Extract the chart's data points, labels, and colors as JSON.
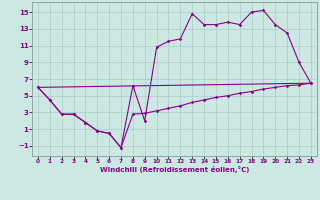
{
  "xlabel": "Windchill (Refroidissement éolien,°C)",
  "bg_color": "#cce8e2",
  "line_color": "#880088",
  "grid_color": "#aacccc",
  "xlim_min": -0.5,
  "xlim_max": 23.5,
  "ylim_min": -2.2,
  "ylim_max": 16.2,
  "xticks": [
    0,
    1,
    2,
    3,
    4,
    5,
    6,
    7,
    8,
    9,
    10,
    11,
    12,
    13,
    14,
    15,
    16,
    17,
    18,
    19,
    20,
    21,
    22,
    23
  ],
  "yticks": [
    -1,
    1,
    3,
    5,
    7,
    9,
    11,
    13,
    15
  ],
  "line1_x": [
    0,
    1,
    2,
    3,
    4,
    5,
    6,
    7,
    8,
    9,
    10,
    11,
    12,
    13,
    14,
    15,
    16,
    17,
    18,
    19,
    20,
    21,
    22,
    23
  ],
  "line1_y": [
    6.0,
    4.5,
    2.8,
    2.8,
    1.8,
    0.8,
    0.5,
    -1.2,
    6.2,
    2.0,
    10.8,
    11.5,
    11.8,
    14.8,
    13.5,
    13.5,
    13.8,
    13.5,
    15.0,
    15.2,
    13.5,
    12.5,
    9.0,
    6.5
  ],
  "line2_x": [
    0,
    1,
    2,
    3,
    4,
    5,
    6,
    7,
    8,
    9,
    10,
    11,
    12,
    13,
    14,
    15,
    16,
    17,
    18,
    19,
    20,
    21,
    22,
    23
  ],
  "line2_y": [
    6.0,
    4.5,
    2.8,
    2.8,
    1.8,
    0.8,
    0.5,
    -1.2,
    2.8,
    2.9,
    3.2,
    3.5,
    3.8,
    4.2,
    4.5,
    4.8,
    5.0,
    5.3,
    5.5,
    5.8,
    6.0,
    6.2,
    6.3,
    6.5
  ],
  "line3_x": [
    0,
    23
  ],
  "line3_y": [
    6.0,
    6.5
  ],
  "xlabel_fontsize": 5.0,
  "tick_fontsize_x": 4.2,
  "tick_fontsize_y": 5.0
}
